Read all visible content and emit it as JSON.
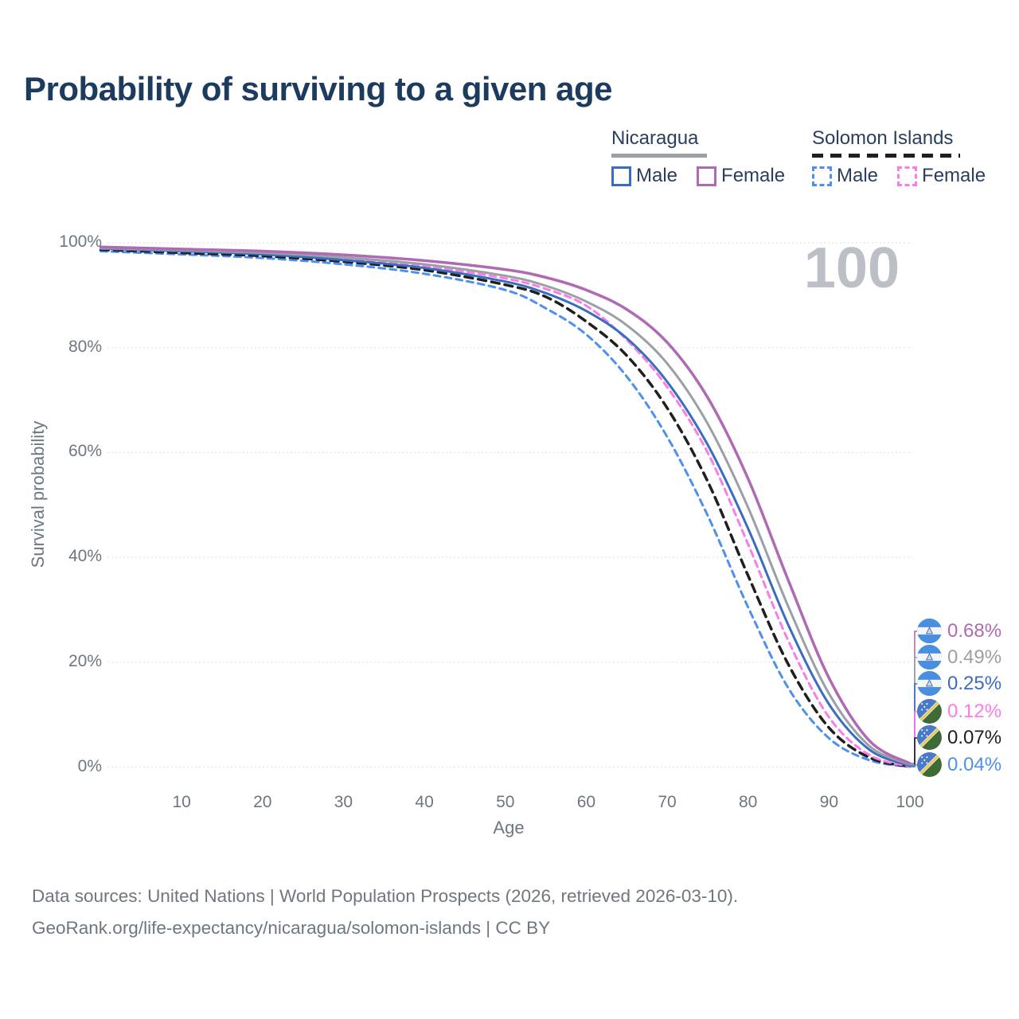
{
  "title": "Probability of surviving to a given age",
  "watermark": "100",
  "legend": {
    "groups": [
      {
        "name": "Nicaragua",
        "line_style": "solid",
        "underline_color": "#9aa0a6",
        "items": [
          {
            "label": "Male",
            "color": "#3b6dbf"
          },
          {
            "label": "Female",
            "color": "#b06ab3"
          }
        ]
      },
      {
        "name": "Solomon Islands",
        "line_style": "dashed",
        "underline_color": "#1f1f1f",
        "items": [
          {
            "label": "Male",
            "color": "#4d90f0"
          },
          {
            "label": "Female",
            "color": "#fb7ce8"
          }
        ]
      }
    ]
  },
  "axes": {
    "x": {
      "title": "Age",
      "ticks": [
        10,
        20,
        30,
        40,
        50,
        60,
        70,
        80,
        90,
        100
      ],
      "range": [
        0,
        100
      ]
    },
    "y": {
      "title": "Survival probability",
      "ticks": [
        "0%",
        "20%",
        "40%",
        "60%",
        "80%",
        "100%"
      ],
      "tick_values": [
        0,
        20,
        40,
        60,
        80,
        100
      ],
      "range": [
        0,
        100
      ],
      "grid": true
    }
  },
  "end_labels": [
    {
      "value": "0.68%",
      "color": "#b06ab3",
      "flag": "nicaragua"
    },
    {
      "value": "0.49%",
      "color": "#9aa0a6",
      "flag": "nicaragua"
    },
    {
      "value": "0.25%",
      "color": "#3b6dbf",
      "flag": "nicaragua"
    },
    {
      "value": "0.12%",
      "color": "#fb7ce8",
      "flag": "solomon-islands"
    },
    {
      "value": "0.07%",
      "color": "#1f1f1f",
      "flag": "solomon-islands"
    },
    {
      "value": "0.04%",
      "color": "#4d90f0",
      "flag": "solomon-islands"
    }
  ],
  "source_lines": [
    "Data sources: United Nations | World Population Prospects (2026, retrieved 2026-03-10).",
    "GeoRank.org/life-expectancy/nicaragua/solomon-islands | CC BY"
  ],
  "chart_data": {
    "type": "line",
    "title": "Probability of surviving to a given age",
    "xlabel": "Age",
    "ylabel": "Survival probability",
    "xlim": [
      0,
      100
    ],
    "ylim": [
      0,
      100
    ],
    "legend_position": "top-right",
    "grid": true,
    "x_ages": [
      0,
      10,
      20,
      30,
      40,
      50,
      55,
      60,
      65,
      70,
      75,
      80,
      85,
      90,
      95,
      100
    ],
    "series": [
      {
        "name": "Solomon Islands Male",
        "country": "Solomon Islands",
        "sex": "Male",
        "color": "#4d90f0",
        "dash": "dashed",
        "width": 3,
        "end_label": "0.04%",
        "values": [
          98.4,
          97.8,
          97.1,
          95.9,
          94.1,
          91.0,
          87.5,
          82.5,
          74.5,
          63.0,
          48.0,
          30.5,
          15.0,
          5.5,
          1.3,
          0.04
        ]
      },
      {
        "name": "Solomon Islands Both sexes",
        "country": "Solomon Islands",
        "sex": "Both",
        "color": "#1f1f1f",
        "dash": "dashed",
        "width": 3.5,
        "end_label": "0.07%",
        "values": [
          98.7,
          98.1,
          97.5,
          96.4,
          94.8,
          92.0,
          89.7,
          85.0,
          78.5,
          68.5,
          54.5,
          36.5,
          19.5,
          7.5,
          1.8,
          0.07
        ]
      },
      {
        "name": "Solomon Islands Female",
        "country": "Solomon Islands",
        "sex": "Female",
        "color": "#fb7ce8",
        "dash": "dashed",
        "width": 3,
        "end_label": "0.12%",
        "values": [
          98.9,
          98.4,
          97.9,
          97.0,
          95.6,
          93.2,
          91.2,
          88.0,
          81.5,
          72.5,
          60.0,
          42.5,
          24.0,
          9.5,
          2.3,
          0.12
        ]
      },
      {
        "name": "Nicaragua Male",
        "country": "Nicaragua",
        "sex": "Male",
        "color": "#3b6dbf",
        "dash": "solid",
        "width": 3,
        "end_label": "0.25%",
        "values": [
          98.9,
          98.4,
          97.8,
          96.7,
          95.2,
          92.6,
          90.4,
          87.0,
          81.8,
          73.5,
          61.5,
          45.5,
          27.0,
          12.0,
          3.3,
          0.25
        ]
      },
      {
        "name": "Nicaragua Both sexes",
        "country": "Nicaragua",
        "sex": "Both",
        "color": "#9aa0a6",
        "dash": "solid",
        "width": 3,
        "end_label": "0.49%",
        "values": [
          99.0,
          98.6,
          98.1,
          97.2,
          95.9,
          93.7,
          91.8,
          88.8,
          84.3,
          77.0,
          65.5,
          49.5,
          30.5,
          14.0,
          4.0,
          0.49
        ]
      },
      {
        "name": "Nicaragua Female",
        "country": "Nicaragua",
        "sex": "Female",
        "color": "#b06ab3",
        "dash": "solid",
        "width": 3.5,
        "end_label": "0.68%",
        "values": [
          99.2,
          98.8,
          98.4,
          97.7,
          96.6,
          94.9,
          93.4,
          91.0,
          87.3,
          81.0,
          70.5,
          55.0,
          35.5,
          17.0,
          5.0,
          0.68
        ]
      }
    ]
  },
  "colors": {
    "title": "#1d3b5e",
    "axis_text": "#6e7680",
    "gridline": "#e3e3e3",
    "watermark": "#bcc0c6"
  }
}
